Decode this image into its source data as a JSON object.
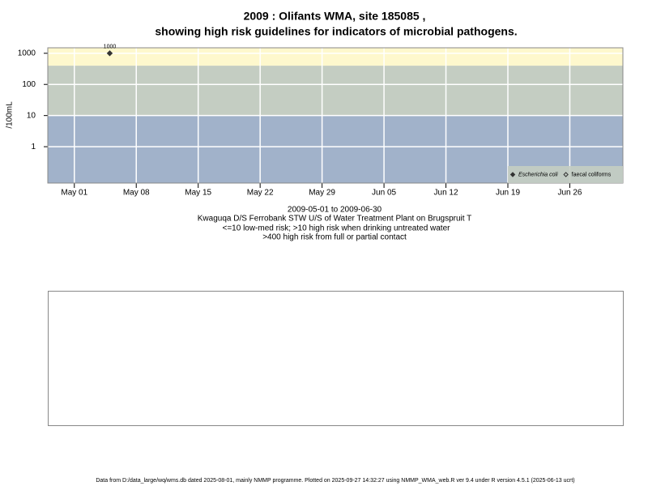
{
  "chart_data": {
    "type": "scatter",
    "title": [
      "2009 : Olifants WMA, site 185085 ,",
      "showing high risk guidelines for indicators of microbial pathogens."
    ],
    "y_label": "/100mL",
    "log_y": true,
    "grid": true,
    "legend": "bottom-right",
    "xlim": [
      "2009-04-28",
      "2009-07-02"
    ],
    "xticks": [
      {
        "value": "2009-05-01",
        "label": "May 01"
      },
      {
        "value": "2009-05-08",
        "label": "May 08"
      },
      {
        "value": "2009-05-15",
        "label": "May 15"
      },
      {
        "value": "2009-05-22",
        "label": "May 22"
      },
      {
        "value": "2009-05-29",
        "label": "May 29"
      },
      {
        "value": "2009-06-05",
        "label": "Jun 05"
      },
      {
        "value": "2009-06-12",
        "label": "Jun 12"
      },
      {
        "value": "2009-06-19",
        "label": "Jun 19"
      },
      {
        "value": "2009-06-26",
        "label": "Jun 26"
      }
    ],
    "ylim": [
      0.068,
      1500
    ],
    "yticks": [
      1,
      10,
      100,
      1000
    ],
    "thresholds": [
      10,
      400
    ],
    "band_colors": [
      "#a1b2ca",
      "#c4cdc2",
      "#fef8cd"
    ],
    "series": [
      {
        "name": "Escherichia coli",
        "color": "#333333",
        "marker": "filled-diamond",
        "x": [
          "2009-05-05"
        ],
        "values": [
          1000
        ]
      },
      {
        "name": "faecal coliforms",
        "color": "#333333",
        "marker": "open-diamond",
        "x": [],
        "values": []
      }
    ],
    "notes": [
      "2009-05-01 to 2009-06-30",
      "Kwaguqa D/S Ferrobank STW U/S of Water Treatment Plant on Brugspruit T",
      "<=10 low-med risk; >10 high risk when drinking untreated water",
      ">400 high risk from full or partial contact"
    ],
    "footer": "Data from D:/data_large/wq/wms.db dated 2025-08-01, mainly NMMP programme. Plotted on 2025-09-27 14:32:27 using NMMP_WMA_web.R ver 9.4 under R version 4.5.1 (2025-06-13 ucrt)"
  }
}
